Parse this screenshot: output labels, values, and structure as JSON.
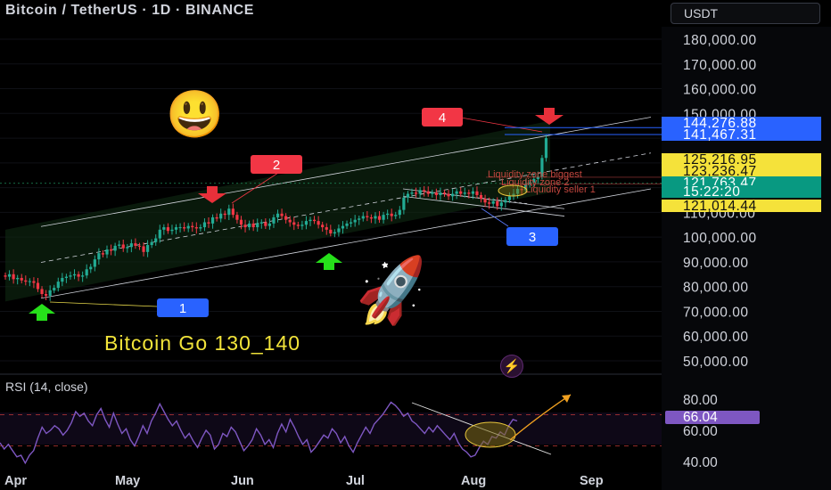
{
  "header": {
    "symbol_line": "Bitcoin / TetherUS · 1D · BINANCE",
    "currency_button": "USDT"
  },
  "chart_data": [
    {
      "type": "line",
      "title": "Bitcoin / TetherUS · 1D · BINANCE",
      "xlabel": "",
      "ylabel": "",
      "x_tick_labels": [
        "Apr",
        "May",
        "Jun",
        "Jul",
        "Aug",
        "Sep"
      ],
      "y_tick_labels": [
        "180,000.00",
        "170,000.00",
        "160,000.00",
        "150,000.00",
        "110,000.00",
        "100,000.00",
        "90,000.00",
        "80,000.00",
        "70,000.00",
        "60,000.00",
        "50,000.00"
      ],
      "ylim": [
        50000,
        180000
      ],
      "close": [
        84000,
        85000,
        83000,
        83500,
        82500,
        82000,
        82200,
        81500,
        79000,
        77000,
        76300,
        78500,
        79500,
        82000,
        83500,
        84000,
        84500,
        85000,
        84000,
        84500,
        87000,
        88000,
        91000,
        93500,
        93000,
        95000,
        94500,
        96500,
        97000,
        95500,
        96000,
        97500,
        96500,
        96300,
        94000,
        96800,
        98000,
        99500,
        103000,
        104000,
        102500,
        103000,
        104000,
        104000,
        103500,
        104500,
        104000,
        103500,
        104000,
        106000,
        105500,
        108000,
        107500,
        109500,
        109000,
        111500,
        109000,
        107000,
        105000,
        104000,
        105500,
        104000,
        105500,
        106000,
        104500,
        105500,
        108000,
        109500,
        108500,
        107000,
        106000,
        105000,
        104500,
        105000,
        106500,
        107000,
        106500,
        105000,
        104000,
        103000,
        101500,
        102000,
        103500,
        104500,
        105500,
        106000,
        107000,
        107500,
        108500,
        108000,
        107500,
        108500,
        107000,
        109000,
        109500,
        108500,
        109000,
        111000,
        116000,
        117500,
        118000,
        117500,
        119000,
        118500,
        117500,
        118000,
        117000,
        118000,
        117500,
        116500,
        117500,
        118500,
        117500,
        118000,
        117500,
        118500,
        117000,
        115500,
        114000,
        113500,
        114500,
        112500,
        114000,
        115000,
        116500,
        117500,
        119500,
        119000,
        121500,
        122000,
        123500,
        124500,
        132000,
        140000
      ],
      "channel": {
        "upper": [
          [
            0,
            103000
          ],
          [
            134,
            147000
          ]
        ],
        "lower": [
          [
            0,
            74000
          ],
          [
            134,
            118000
          ]
        ],
        "mid": [
          [
            0,
            88500
          ],
          [
            134,
            132500
          ]
        ]
      },
      "annotations": [
        "1",
        "2",
        "3",
        "4",
        "Liquidity zone biggest",
        "Liquidity zone 2",
        "Liquidity seller 1",
        "Bitcoin Go 130_140"
      ],
      "price_labels": [
        {
          "text": "144,276.88",
          "value": 144276.88,
          "color": "#2962ff"
        },
        {
          "text": "141,467.31",
          "value": 141467.31,
          "color": "#2962ff"
        },
        {
          "text": "125,216.95",
          "value": 125216.95,
          "color": "#f5e23a"
        },
        {
          "text": "123,236.47",
          "value": 123236.47,
          "color": "#f5e23a"
        },
        {
          "text": "121,763.47",
          "value": 121763.47,
          "color": "#089981"
        },
        {
          "text": "15:22:20",
          "value": null,
          "color": "#089981"
        },
        {
          "text": "121,014.44",
          "value": 121014.44,
          "color": "#f5e23a"
        }
      ]
    },
    {
      "type": "line",
      "title": "RSI (14, close)",
      "y_tick_labels": [
        "80.00",
        "60.00",
        "40.00"
      ],
      "ylim": [
        35,
        85
      ],
      "levels": [
        70,
        50
      ],
      "current": "66.04",
      "values": [
        52,
        48,
        51,
        47,
        43,
        44,
        39,
        44,
        47,
        55,
        62,
        58,
        60,
        63,
        61,
        57,
        60,
        65,
        72,
        69,
        71,
        66,
        63,
        70,
        74,
        67,
        62,
        71,
        64,
        58,
        61,
        54,
        50,
        56,
        63,
        58,
        66,
        71,
        77,
        72,
        67,
        63,
        66,
        60,
        55,
        58,
        53,
        49,
        55,
        60,
        57,
        48,
        51,
        58,
        56,
        62,
        59,
        53,
        47,
        50,
        54,
        61,
        57,
        51,
        54,
        49,
        58,
        64,
        59,
        67,
        62,
        56,
        51,
        54,
        46,
        49,
        53,
        57,
        55,
        61,
        58,
        52,
        56,
        50,
        46,
        52,
        57,
        62,
        58,
        64,
        67,
        70,
        74,
        78,
        76,
        73,
        69,
        71,
        66,
        64,
        61,
        58,
        62,
        59,
        63,
        60,
        57,
        54,
        58,
        52,
        48,
        46,
        43,
        44,
        49,
        53,
        51,
        56,
        55,
        59,
        57,
        63,
        67,
        66
      ]
    }
  ],
  "overlay": {
    "caption": "Bitcoin Go 130_140",
    "rsi_label": "RSI (14, close)",
    "emoji_smile": "😃",
    "emoji_rocket": "🚀",
    "bolt_icon": "⚡"
  },
  "colors": {
    "up": "#22ab94",
    "down": "#f23645",
    "rsi": "#7e57c2",
    "channel": "#d1d4dc",
    "label_red": "#f23645",
    "label_blue": "#2962ff",
    "arrow_green": "#26e01a",
    "arrow_red": "#e8303a"
  }
}
